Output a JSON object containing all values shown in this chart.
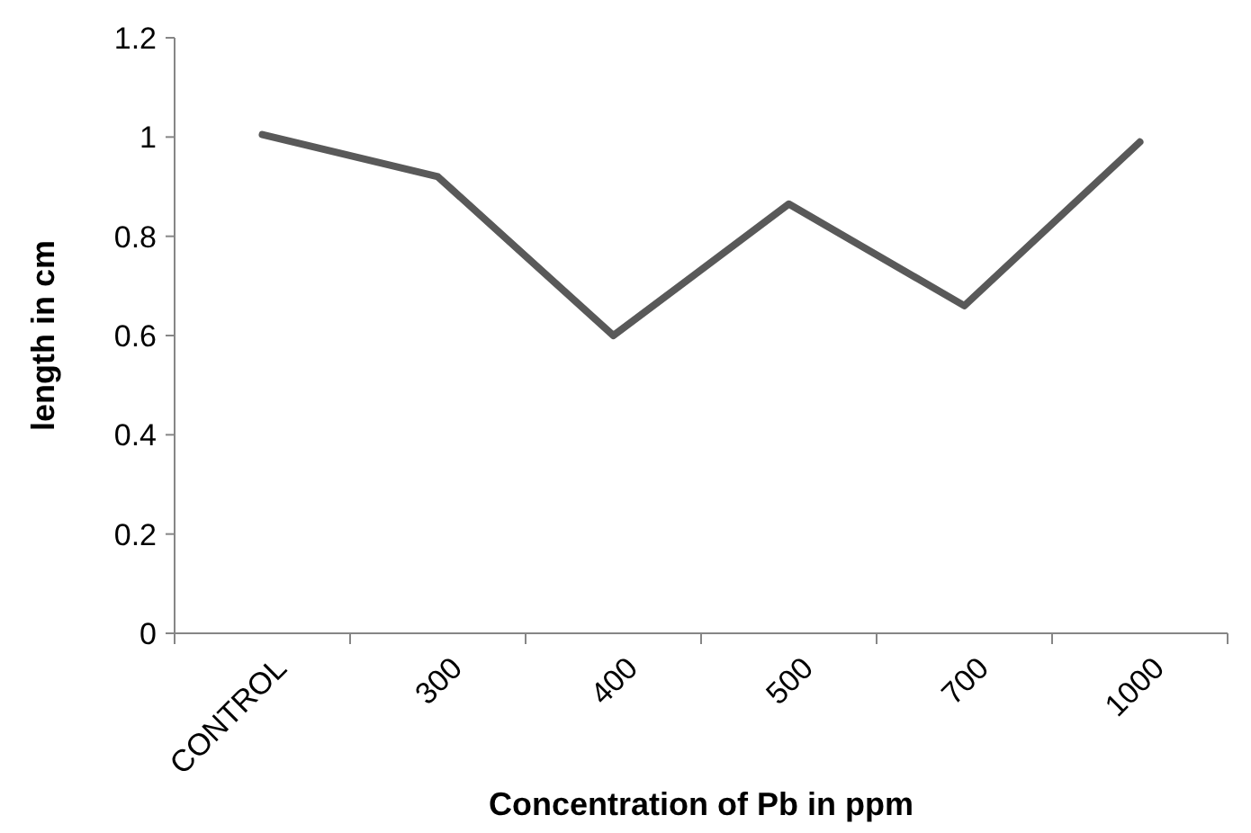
{
  "chart_data": {
    "type": "line",
    "xlabel": "Concentration of Pb in ppm",
    "ylabel": "length in cm",
    "categories": [
      "CONTROL",
      "300",
      "400",
      "500",
      "700",
      "1000"
    ],
    "series": [
      {
        "color": "#595959",
        "values": [
          1.005,
          0.92,
          0.6,
          0.865,
          0.66,
          0.99
        ]
      }
    ],
    "ylim": [
      0,
      1.2
    ],
    "yticks": [
      0,
      0.2,
      0.4,
      0.6,
      0.8,
      1,
      1.2
    ],
    "grid": false,
    "marker": "none",
    "line_style": "solid"
  }
}
